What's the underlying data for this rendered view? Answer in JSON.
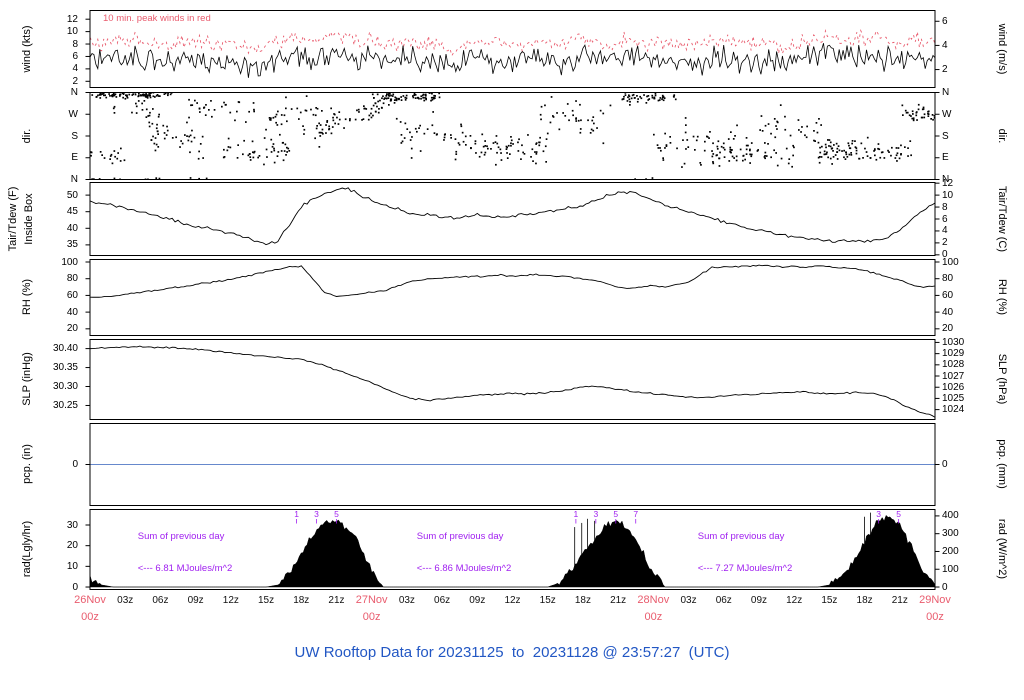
{
  "title": "UW Rooftop Data for 20231125  to  20231128 @ 23:57:27  (UTC)",
  "colors": {
    "trace": "#000000",
    "peak_wind": "#e95c6e",
    "date_label": "#e95c6e",
    "minor_label": "#111111",
    "title": "#2257c4",
    "annotation_purple": "#a020f0",
    "pcp_line": "#6688cc",
    "axis": "#000000"
  },
  "x_axis": {
    "hours_total": 72,
    "day_labels": [
      {
        "hour": 0,
        "line1": "26Nov",
        "line2": "00z"
      },
      {
        "hour": 24,
        "line1": "27Nov",
        "line2": "00z"
      },
      {
        "hour": 48,
        "line1": "28Nov",
        "line2": "00z"
      },
      {
        "hour": 72,
        "line1": "29Nov",
        "line2": "00z"
      }
    ],
    "minor_labels": [
      "03z",
      "06z",
      "09z",
      "12z",
      "15z",
      "18z",
      "21z"
    ]
  },
  "chart_data": [
    {
      "type": "line",
      "id": "wind",
      "ylabel_left": "wind (kts)",
      "ylabel_right": "wind (m/s)",
      "annotation": "10 min. peak winds in red",
      "ylim": [
        1,
        13.4
      ],
      "yticks_left": [
        [
          2,
          "2"
        ],
        [
          4,
          "4"
        ],
        [
          6,
          "6"
        ],
        [
          8,
          "8"
        ],
        [
          10,
          "10"
        ],
        [
          12,
          "12"
        ]
      ],
      "yticks_right": [
        [
          3.889,
          "2"
        ],
        [
          7.777,
          "4"
        ],
        [
          11.666,
          "6"
        ]
      ],
      "x_step_hours": 1,
      "wind_kts": [
        6,
        5.5,
        6,
        5.5,
        6,
        5,
        5.5,
        5,
        5.5,
        6,
        5.5,
        5,
        5.5,
        5,
        4.5,
        5,
        5.5,
        6,
        6,
        5.5,
        6,
        6.5,
        6,
        5.5,
        6,
        5.5,
        5,
        5.5,
        5,
        5.5,
        5,
        4.5,
        5,
        5.5,
        5,
        5.5,
        5,
        5.5,
        6,
        5.5,
        5,
        5.5,
        6,
        5.5,
        5,
        5.5,
        6,
        5.5,
        5,
        5.5,
        5,
        5.5,
        5,
        5.5,
        6,
        5.5,
        5,
        5.5,
        5,
        4.5,
        5,
        5.5,
        6,
        6.5,
        6,
        5.5,
        6,
        6.5,
        6,
        5.5,
        6,
        6,
        6
      ],
      "peak_offset_kts": 2.4
    },
    {
      "type": "scatter",
      "id": "dir",
      "ylabel_left": "dir.",
      "ylabel_right": "dir.",
      "ylim": [
        0,
        360
      ],
      "yticks_left": [
        [
          360,
          "N"
        ],
        [
          270,
          "W"
        ],
        [
          180,
          "S"
        ],
        [
          90,
          "E"
        ],
        [
          0,
          "N"
        ]
      ],
      "yticks_right": [
        [
          360,
          "N"
        ],
        [
          270,
          "W"
        ],
        [
          180,
          "S"
        ],
        [
          90,
          "E"
        ],
        [
          0,
          "N"
        ]
      ],
      "segments_from_to_c1_c2_spread_density": [
        [
          0,
          7,
          350,
          350,
          10,
          0.95
        ],
        [
          0,
          3,
          100,
          100,
          30,
          0.4
        ],
        [
          2,
          6,
          300,
          280,
          40,
          0.35
        ],
        [
          4,
          10,
          200,
          160,
          60,
          0.5
        ],
        [
          8,
          14,
          300,
          300,
          50,
          0.4
        ],
        [
          11,
          17,
          130,
          110,
          45,
          0.55
        ],
        [
          15,
          21,
          250,
          270,
          60,
          0.45
        ],
        [
          19,
          26,
          180,
          345,
          35,
          0.7
        ],
        [
          24,
          30,
          340,
          345,
          15,
          0.85
        ],
        [
          26,
          33,
          210,
          180,
          70,
          0.45
        ],
        [
          32,
          40,
          140,
          130,
          55,
          0.55
        ],
        [
          38,
          45,
          260,
          240,
          70,
          0.4
        ],
        [
          45,
          50,
          340,
          335,
          20,
          0.75
        ],
        [
          48,
          56,
          160,
          140,
          65,
          0.5
        ],
        [
          53,
          60,
          100,
          110,
          40,
          0.55
        ],
        [
          57,
          63,
          230,
          200,
          75,
          0.4
        ],
        [
          62,
          70,
          120,
          110,
          40,
          0.85
        ],
        [
          69,
          72,
          270,
          270,
          25,
          0.85
        ]
      ]
    },
    {
      "type": "line",
      "id": "temp",
      "ylabel_left": "Tair/Tdew (F)",
      "ylabel_left2": "Inside Box",
      "ylabel_right": "Tair/Tdew (C)",
      "ylim": [
        31.8,
        53.8
      ],
      "yticks_left": [
        [
          35,
          "35"
        ],
        [
          40,
          "40"
        ],
        [
          45,
          "45"
        ],
        [
          50,
          "50"
        ]
      ],
      "yticks_right": [
        [
          32,
          "0"
        ],
        [
          35.6,
          "2"
        ],
        [
          39.2,
          "4"
        ],
        [
          42.8,
          "6"
        ],
        [
          46.4,
          "8"
        ],
        [
          50,
          "10"
        ],
        [
          53.6,
          "12"
        ]
      ],
      "x_step_hours": 1,
      "tair_f": [
        48,
        47.5,
        47,
        46,
        45,
        44.2,
        43.5,
        42.5,
        41.5,
        40.5,
        40,
        39.2,
        38.5,
        37.5,
        36,
        35.2,
        36,
        41,
        46.5,
        49,
        50.5,
        51.5,
        52,
        50,
        48.5,
        47.2,
        46,
        45,
        44.3,
        43.8,
        43.4,
        43,
        43.4,
        44,
        43.6,
        43.2,
        43.5,
        44,
        44.5,
        45,
        45.6,
        46.2,
        47,
        48.2,
        49.6,
        50.6,
        51,
        50,
        48.5,
        47,
        46,
        45,
        44,
        43,
        42,
        41,
        40,
        39.4,
        38.8,
        38,
        37.4,
        37,
        36.6,
        36.2,
        36,
        36.4,
        36,
        36.5,
        37.2,
        39.5,
        42.5,
        45.5,
        47.5
      ]
    },
    {
      "type": "line",
      "id": "rh",
      "ylabel_left": "RH (%)",
      "ylabel_right": "RH (%)",
      "ylim": [
        12,
        103
      ],
      "yticks_left": [
        [
          20,
          "20"
        ],
        [
          40,
          "40"
        ],
        [
          60,
          "60"
        ],
        [
          80,
          "80"
        ],
        [
          100,
          "100"
        ]
      ],
      "yticks_right": [
        [
          20,
          "20"
        ],
        [
          40,
          "40"
        ],
        [
          60,
          "60"
        ],
        [
          80,
          "80"
        ],
        [
          100,
          "100"
        ]
      ],
      "x_step_hours": 1,
      "rh_pct": [
        58,
        58,
        59,
        61,
        63,
        65,
        67,
        69,
        71,
        73,
        75,
        77,
        79,
        82,
        85,
        88,
        91,
        94,
        95,
        80,
        63,
        59,
        60,
        62,
        64,
        65,
        70,
        75,
        78,
        80,
        81,
        82,
        82,
        83,
        83,
        84,
        83,
        84,
        85,
        84,
        83,
        82,
        80,
        78,
        74,
        70,
        68,
        70,
        72,
        70,
        73,
        76,
        85,
        93,
        95,
        94,
        95,
        96,
        95,
        94,
        95,
        94,
        95,
        94,
        93,
        92,
        90,
        86,
        82,
        78,
        73,
        70,
        71
      ]
    },
    {
      "type": "line",
      "id": "slp",
      "ylabel_left": "SLP (inHg)",
      "ylabel_right": "SLP (hPa)",
      "ylim": [
        30.213,
        30.424
      ],
      "yticks_left": [
        [
          30.25,
          "30.25"
        ],
        [
          30.3,
          "30.30"
        ],
        [
          30.35,
          "30.35"
        ],
        [
          30.4,
          "30.40"
        ]
      ],
      "yticks_right": [
        [
          30.2391,
          "1024"
        ],
        [
          30.2686,
          "1025"
        ],
        [
          30.2981,
          "1026"
        ],
        [
          30.3277,
          "1027"
        ],
        [
          30.3572,
          "1028"
        ],
        [
          30.3867,
          "1029"
        ],
        [
          30.4163,
          "1030"
        ]
      ],
      "x_step_hours": 1,
      "slp_inhg": [
        30.4,
        30.402,
        30.403,
        30.404,
        30.405,
        30.404,
        30.403,
        30.402,
        30.4,
        30.398,
        30.395,
        30.392,
        30.388,
        30.385,
        30.382,
        30.38,
        30.378,
        30.375,
        30.371,
        30.364,
        30.354,
        30.344,
        30.333,
        30.322,
        30.31,
        30.296,
        30.283,
        30.272,
        30.266,
        30.264,
        30.267,
        30.271,
        30.274,
        30.277,
        30.278,
        30.28,
        30.282,
        30.28,
        30.282,
        30.284,
        30.287,
        30.293,
        30.299,
        30.301,
        30.297,
        30.292,
        30.288,
        30.284,
        30.281,
        30.278,
        30.275,
        30.272,
        30.27,
        30.272,
        30.275,
        30.277,
        30.279,
        30.281,
        30.283,
        30.284,
        30.285,
        30.284,
        30.282,
        30.281,
        30.282,
        30.284,
        30.283,
        30.28,
        30.271,
        30.256,
        30.241,
        30.229,
        30.221
      ]
    },
    {
      "type": "line",
      "id": "pcp",
      "ylabel_left": "pcp. (in)",
      "ylabel_right": "pcp. (mm)",
      "ylim": [
        -1,
        1
      ],
      "yticks_left": [
        [
          0,
          "0"
        ]
      ],
      "yticks_right": [
        [
          0,
          "0"
        ]
      ],
      "constant_value": 0
    },
    {
      "type": "area",
      "id": "rad",
      "ylabel_left": "rad(Lgly/hr)",
      "ylabel_right": "rad (W/m^2)",
      "ylim": [
        -1.2,
        37.5
      ],
      "yticks_left": [
        [
          0,
          "0"
        ],
        [
          10,
          "10"
        ],
        [
          20,
          "20"
        ],
        [
          30,
          "30"
        ]
      ],
      "yticks_right": [
        [
          0,
          "0"
        ],
        [
          8.6,
          "100"
        ],
        [
          17.2,
          "200"
        ],
        [
          25.8,
          "300"
        ],
        [
          34.4,
          "400"
        ]
      ],
      "x_step_hours": 1,
      "rad_lgly_hr": [
        4,
        1,
        0,
        0,
        0,
        0,
        0,
        0,
        0,
        0,
        0,
        0,
        0,
        0,
        0,
        0,
        1,
        7,
        16,
        26,
        31,
        32,
        28,
        20,
        8,
        0,
        0,
        0,
        0,
        0,
        0,
        0,
        0,
        0,
        0,
        0,
        0,
        0,
        0,
        0,
        2,
        8,
        16,
        24,
        30,
        31,
        27,
        18,
        7,
        0,
        0,
        0,
        0,
        0,
        0,
        0,
        0,
        0,
        0,
        0,
        0,
        0,
        0,
        1,
        5,
        12,
        22,
        31,
        35,
        30,
        20,
        8,
        1
      ],
      "spikes_hour_value": [
        [
          41.3,
          29
        ],
        [
          41.9,
          31
        ],
        [
          42.4,
          33
        ],
        [
          43.0,
          32
        ],
        [
          66.0,
          34
        ],
        [
          66.5,
          36
        ]
      ],
      "hour_marks": [
        [
          17.6,
          "1"
        ],
        [
          19.3,
          "3"
        ],
        [
          21.0,
          "5"
        ],
        [
          41.4,
          "1"
        ],
        [
          43.1,
          "3"
        ],
        [
          44.8,
          "5"
        ],
        [
          46.5,
          "7"
        ],
        [
          67.2,
          "3"
        ],
        [
          68.9,
          "5"
        ]
      ],
      "sums": [
        {
          "line1": "Sum of previous day",
          "line2": "<--- 6.81 MJoules/m^2",
          "center_hour": 8.1
        },
        {
          "line1": "Sum of previous day",
          "line2": "<--- 6.86 MJoules/m^2",
          "center_hour": 31.9
        },
        {
          "line1": "Sum of previous day",
          "line2": "<--- 7.27 MJoules/m^2",
          "center_hour": 55.8
        }
      ]
    }
  ]
}
